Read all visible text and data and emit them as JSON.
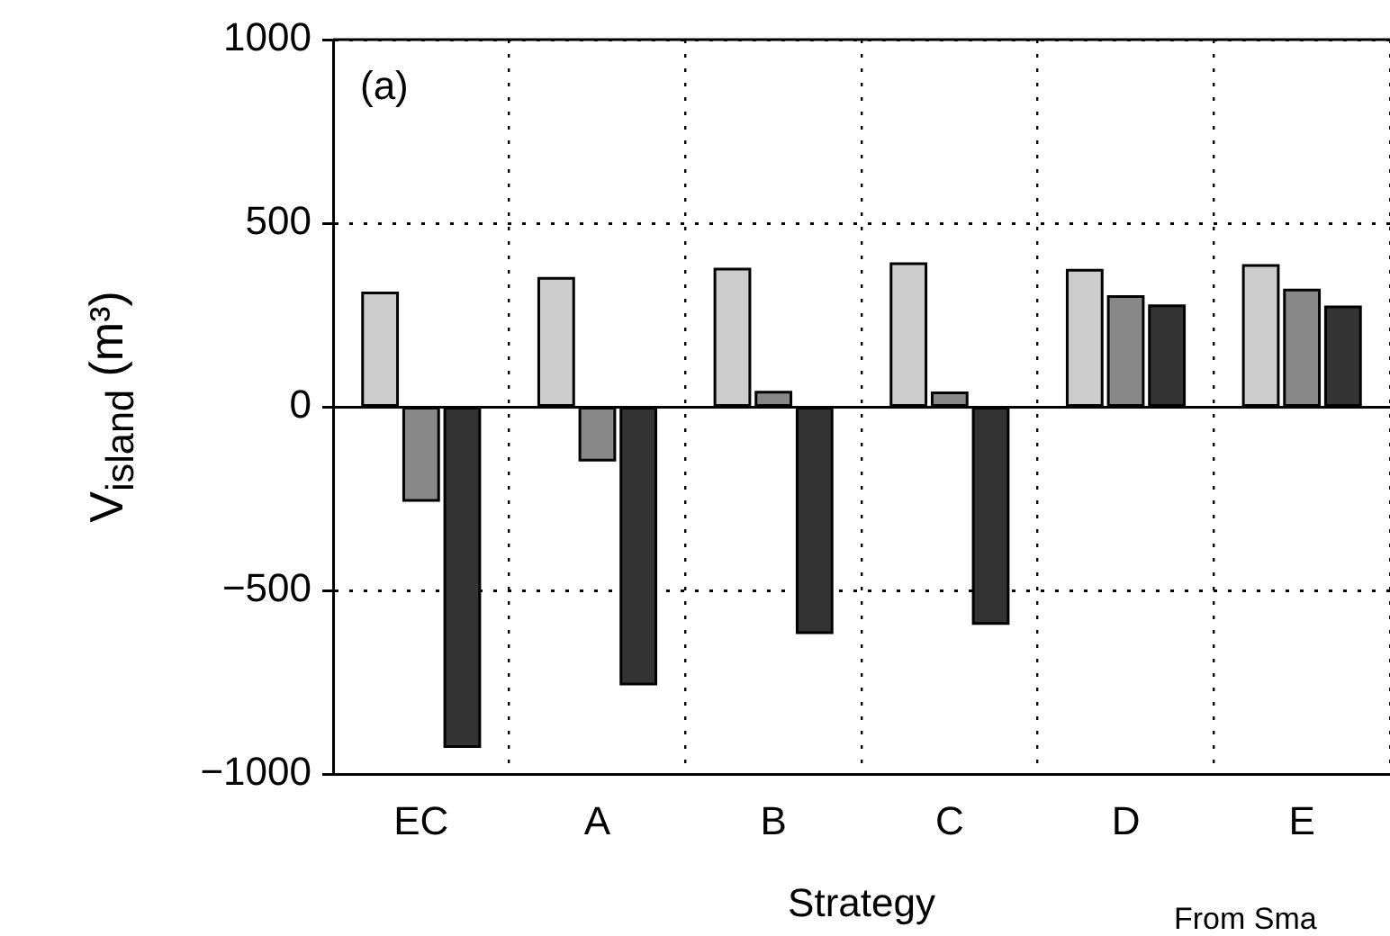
{
  "chart_data": {
    "type": "bar",
    "xlabel": "Strategy",
    "ylabel": "V$_{island}$ (m³)",
    "categories": [
      "EC",
      "A",
      "B",
      "C",
      "D",
      "E"
    ],
    "series": [
      {
        "color": "#cccccc",
        "values": [
          310,
          350,
          375,
          390,
          372,
          385
        ]
      },
      {
        "color": "#888888",
        "values": [
          -255,
          -145,
          40,
          38,
          300,
          318
        ]
      },
      {
        "color": "#333333",
        "values": [
          -925,
          -755,
          -615,
          -590,
          275,
          272
        ]
      }
    ],
    "ylim": [
      -1000,
      1000
    ],
    "yticks": [
      -1000,
      -500,
      0,
      500,
      1000
    ],
    "grid": true,
    "legend": false,
    "annotations": [
      "(a)",
      "From Sma"
    ]
  }
}
